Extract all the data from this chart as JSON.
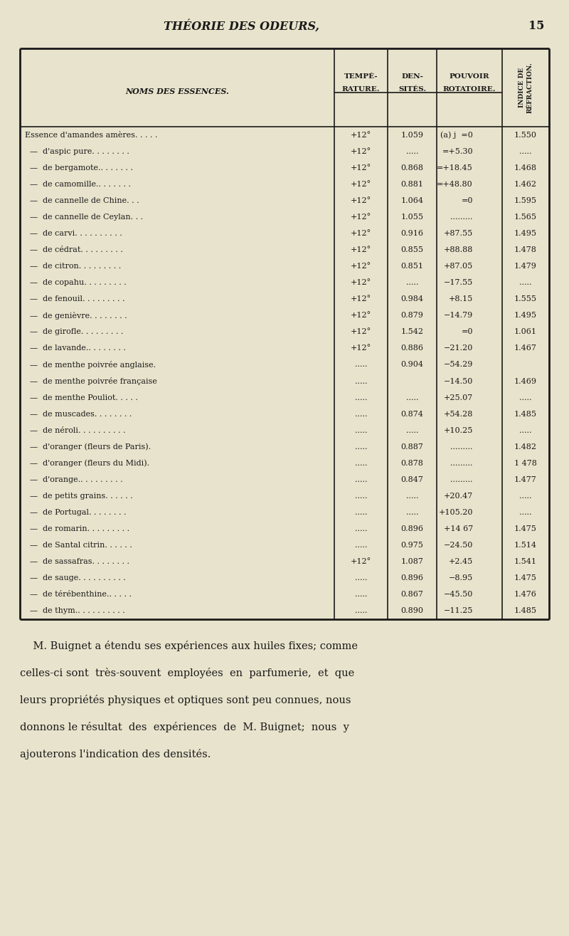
{
  "page_title": "THÉORIE DES ODEURS,",
  "page_number": "15",
  "bg_color": "#e8e3cc",
  "text_color": "#1a1a1a",
  "rows": [
    [
      "Essence d'amandes amères. . . . .",
      "+12°",
      "1.059",
      "(a) j  =0",
      "1.550"
    ],
    [
      "  —  d'aspic pure. . . . . . . .",
      "+12°",
      ".....",
      "=+5.30",
      "....."
    ],
    [
      "  —  de bergamote.. . . . . . .",
      "+12°",
      "0.868",
      "=+18.45",
      "1.468"
    ],
    [
      "  —  de camomille.. . . . . . .",
      "+12°",
      "0.881",
      "=+48.80",
      "1.462"
    ],
    [
      "  —  de cannelle de Chine. . .",
      "+12°",
      "1.064",
      "=0",
      "1.595"
    ],
    [
      "  —  de cannelle de Ceylan. . .",
      "+12°",
      "1.055",
      ".........",
      "1.565"
    ],
    [
      "  —  de carvi. . . . . . . . . .",
      "+12°",
      "0.916",
      "+87.55",
      "1.495"
    ],
    [
      "  —  de cédrat. . . . . . . . .",
      "+12°",
      "0.855",
      "+88.88",
      "1.478"
    ],
    [
      "  —  de citron. . . . . . . . .",
      "+12°",
      "0.851",
      "+87.05",
      "1.479"
    ],
    [
      "  —  de copahu. . . . . . . . .",
      "+12°",
      ".....",
      "−17.55",
      "....."
    ],
    [
      "  —  de fenouil. . . . . . . . .",
      "+12°",
      "0.984",
      "+8.15",
      "1.555"
    ],
    [
      "  —  de genièvre. . . . . . . .",
      "+12°",
      "0.879",
      "−14.79",
      "1.495"
    ],
    [
      "  —  de girofle. . . . . . . . .",
      "+12°",
      "1.542",
      "=0",
      "1.061"
    ],
    [
      "  —  de lavande.. . . . . . . .",
      "+12°",
      "0.886",
      "−21.20",
      "1.467"
    ],
    [
      "  —  de menthe poivrée anglaise.",
      ".....",
      "0.904",
      "−54.29",
      ""
    ],
    [
      "  —  de menthe poivrée française",
      ".....",
      "",
      "−14.50",
      "1.469"
    ],
    [
      "  —  de menthe Pouliot. . . . .",
      ".....",
      ".....",
      "+25.07",
      "....."
    ],
    [
      "  —  de muscades. . . . . . . .",
      ".....",
      "0.874",
      "+54.28",
      "1.485"
    ],
    [
      "  —  de néroli. . . . . . . . . .",
      ".....",
      ".....",
      "+10.25",
      "....."
    ],
    [
      "  —  d'oranger (fleurs de Paris).",
      ".....",
      "0.887",
      ".........",
      "1.482"
    ],
    [
      "  —  d'oranger (fleurs du Midi).",
      ".....",
      "0.878",
      ".........",
      "1 478"
    ],
    [
      "  —  d'orange.. . . . . . . . .",
      ".....",
      "0.847",
      ".........",
      "1.477"
    ],
    [
      "  —  de petits grains. . . . . .",
      ".....",
      ".....",
      "+20.47",
      "....."
    ],
    [
      "  —  de Portugal. . . . . . . .",
      ".....",
      ".....",
      "+105.20",
      "....."
    ],
    [
      "  —  de romarin. . . . . . . . .",
      ".....",
      "0.896",
      "+14 67",
      "1.475"
    ],
    [
      "  —  de Santal citrin. . . . . .",
      ".....",
      "0.975",
      "−24.50",
      "1.514"
    ],
    [
      "  —  de sassafras. . . . . . . .",
      "+12°",
      "1.087",
      "+2.45",
      "1.541"
    ],
    [
      "  —  de sauge. . . . . . . . . .",
      ".....",
      "0.896",
      "−8.95",
      "1.475"
    ],
    [
      "  —  de térébenthine.. . . . .",
      ".....",
      "0.867",
      "−45.50",
      "1.476"
    ],
    [
      "  —  de thym.. . . . . . . . . .",
      ".....",
      "0.890",
      "−11.25",
      "1.485"
    ]
  ],
  "footer_lines": [
    "    M. Buignet a étendu ses expériences aux huiles fixes; comme",
    "celles-ci sont  très-souvent  employées  en  parfumerie,  et  que",
    "leurs propriétés physiques et optiques sont peu connues, nous",
    "donnons le résultat  des  expériences  de  M. Buignet;  nous  y",
    "ajouterons l'indication des densités."
  ]
}
